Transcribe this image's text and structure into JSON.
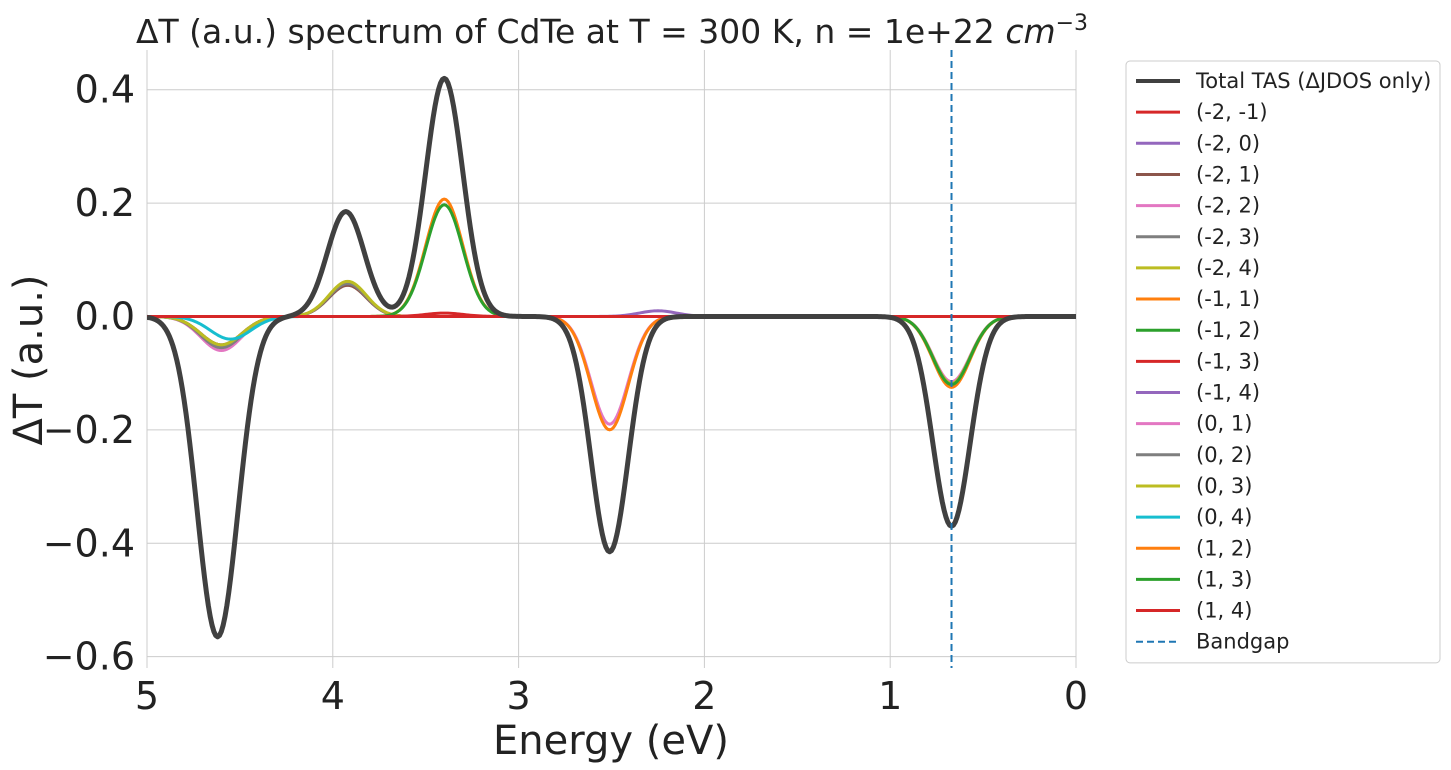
{
  "chart_data": {
    "type": "line",
    "title": "ΔT (a.u.) spectrum of CdTe at T = 300 K, n = 1e+22",
    "title_unit_base": "cm",
    "title_unit_exp": "−3",
    "xlabel": "Energy (eV)",
    "ylabel": "ΔT (a.u.)",
    "xlim": [
      5,
      0
    ],
    "ylim": [
      -0.62,
      0.47
    ],
    "x_reversed": true,
    "grid": true,
    "legend_position": "outside-right",
    "x_ticks": [
      5,
      4,
      3,
      2,
      1,
      0
    ],
    "x_tick_labels": [
      "5",
      "4",
      "3",
      "2",
      "1",
      "0"
    ],
    "y_ticks": [
      0.4,
      0.2,
      0.0,
      -0.2,
      -0.4,
      -0.6
    ],
    "y_tick_labels": [
      "0.4",
      "0.2",
      "0.0",
      "−0.2",
      "−0.4",
      "−0.6"
    ],
    "bandgap": {
      "name": "Bandgap",
      "x": 0.67,
      "color": "#1f77b4",
      "style": "dashed"
    },
    "series": [
      {
        "name": "Total TAS (ΔJDOS only)",
        "color": "#404040",
        "width": 5,
        "peaks": [
          [
            4.62,
            -0.565,
            0.11
          ],
          [
            3.93,
            0.185,
            0.1
          ],
          [
            3.4,
            0.42,
            0.1
          ],
          [
            2.51,
            -0.415,
            0.1
          ],
          [
            0.67,
            -0.37,
            0.1
          ]
        ]
      },
      {
        "name": "(-2, -1)",
        "color": "#d62728",
        "width": 3,
        "peaks": [
          [
            4.6,
            -0.05,
            0.11
          ],
          [
            3.92,
            0.057,
            0.1
          ]
        ]
      },
      {
        "name": "(-2, 0)",
        "color": "#9467bd",
        "width": 3,
        "peaks": [
          [
            2.25,
            0.01,
            0.1
          ]
        ]
      },
      {
        "name": "(-2, 1)",
        "color": "#8c564b",
        "width": 3,
        "peaks": [
          [
            4.6,
            -0.05,
            0.11
          ],
          [
            3.92,
            0.055,
            0.1
          ]
        ]
      },
      {
        "name": "(-2, 2)",
        "color": "#e377c2",
        "width": 3,
        "peaks": [
          [
            4.6,
            -0.06,
            0.11
          ],
          [
            3.92,
            0.06,
            0.1
          ]
        ]
      },
      {
        "name": "(-2, 3)",
        "color": "#7f7f7f",
        "width": 3,
        "peaks": [
          [
            4.6,
            -0.055,
            0.11
          ],
          [
            3.92,
            0.058,
            0.1
          ]
        ]
      },
      {
        "name": "(-2, 4)",
        "color": "#bcbd22",
        "width": 3,
        "peaks": [
          [
            4.6,
            -0.05,
            0.11
          ],
          [
            3.92,
            0.062,
            0.1
          ]
        ]
      },
      {
        "name": "(-1, 1)",
        "color": "#ff7f0e",
        "width": 3,
        "peaks": [
          [
            3.4,
            0.207,
            0.1
          ]
        ]
      },
      {
        "name": "(-1, 2)",
        "color": "#2ca02c",
        "width": 3,
        "peaks": [
          [
            3.4,
            0.197,
            0.1
          ]
        ]
      },
      {
        "name": "(-1, 3)",
        "color": "#d62728",
        "width": 3,
        "peaks": [
          [
            3.4,
            0.006,
            0.1
          ]
        ]
      },
      {
        "name": "(-1, 4)",
        "color": "#9467bd",
        "width": 3,
        "peaks": []
      },
      {
        "name": "(0, 1)",
        "color": "#e377c2",
        "width": 3,
        "peaks": [
          [
            2.51,
            -0.19,
            0.1
          ],
          [
            0.67,
            -0.115,
            0.1
          ]
        ]
      },
      {
        "name": "(0, 2)",
        "color": "#7f7f7f",
        "width": 3,
        "peaks": [
          [
            0.67,
            -0.12,
            0.1
          ]
        ]
      },
      {
        "name": "(0, 3)",
        "color": "#bcbd22",
        "width": 3,
        "peaks": [
          [
            0.67,
            -0.118,
            0.1
          ]
        ]
      },
      {
        "name": "(0, 4)",
        "color": "#17becf",
        "width": 3,
        "peaks": [
          [
            4.55,
            -0.04,
            0.11
          ]
        ]
      },
      {
        "name": "(1, 2)",
        "color": "#ff7f0e",
        "width": 3,
        "peaks": [
          [
            2.51,
            -0.2,
            0.1
          ],
          [
            0.67,
            -0.125,
            0.1
          ]
        ]
      },
      {
        "name": "(1, 3)",
        "color": "#2ca02c",
        "width": 3,
        "peaks": [
          [
            0.67,
            -0.12,
            0.1
          ]
        ]
      },
      {
        "name": "(1, 4)",
        "color": "#d62728",
        "width": 3,
        "peaks": []
      }
    ]
  }
}
